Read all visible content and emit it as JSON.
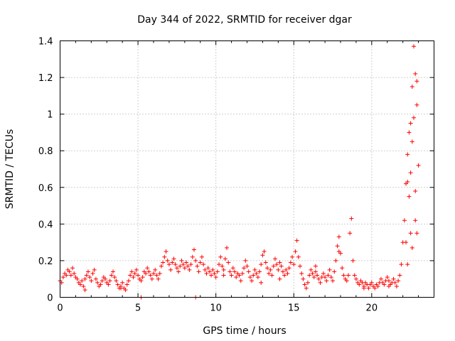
{
  "chart_data": {
    "type": "scatter",
    "title": "Day 344 of 2022, SRMTID for receiver dgar",
    "xlabel": "GPS time / hours",
    "ylabel": "SRMTID / TECUs",
    "xlim": [
      0,
      24
    ],
    "ylim": [
      0,
      1.4
    ],
    "xticks": [
      "0",
      "5",
      "10",
      "15",
      "20"
    ],
    "yticks": [
      "0",
      "0.2",
      "0.4",
      "0.6",
      "0.8",
      "1",
      "1.2",
      "1.4"
    ],
    "grid": true,
    "marker": "plus",
    "color": "#ff0000",
    "series": [
      {
        "points": [
          [
            0.0,
            0.09
          ],
          [
            0.1,
            0.08
          ],
          [
            0.2,
            0.11
          ],
          [
            0.3,
            0.13
          ],
          [
            0.4,
            0.12
          ],
          [
            0.5,
            0.15
          ],
          [
            0.6,
            0.14
          ],
          [
            0.7,
            0.12
          ],
          [
            0.8,
            0.16
          ],
          [
            0.9,
            0.13
          ],
          [
            1.0,
            0.11
          ],
          [
            1.1,
            0.1
          ],
          [
            1.2,
            0.08
          ],
          [
            1.3,
            0.07
          ],
          [
            1.4,
            0.09
          ],
          [
            1.5,
            0.06
          ],
          [
            1.6,
            0.1
          ],
          [
            1.7,
            0.12
          ],
          [
            1.8,
            0.14
          ],
          [
            1.9,
            0.11
          ],
          [
            2.0,
            0.09
          ],
          [
            2.1,
            0.13
          ],
          [
            2.2,
            0.15
          ],
          [
            2.3,
            0.1
          ],
          [
            2.4,
            0.08
          ],
          [
            2.5,
            0.06
          ],
          [
            2.6,
            0.07
          ],
          [
            2.7,
            0.09
          ],
          [
            2.8,
            0.11
          ],
          [
            2.9,
            0.1
          ],
          [
            3.0,
            0.08
          ],
          [
            3.1,
            0.07
          ],
          [
            3.2,
            0.09
          ],
          [
            3.3,
            0.12
          ],
          [
            3.4,
            0.14
          ],
          [
            3.5,
            0.11
          ],
          [
            3.6,
            0.09
          ],
          [
            3.7,
            0.07
          ],
          [
            3.8,
            0.05
          ],
          [
            3.9,
            0.06
          ],
          [
            4.0,
            0.08
          ],
          [
            4.1,
            0.05
          ],
          [
            4.2,
            0.04
          ],
          [
            4.3,
            0.07
          ],
          [
            4.4,
            0.09
          ],
          [
            4.5,
            0.12
          ],
          [
            4.6,
            0.14
          ],
          [
            4.7,
            0.11
          ],
          [
            4.8,
            0.13
          ],
          [
            4.9,
            0.15
          ],
          [
            5.0,
            0.12
          ],
          [
            5.1,
            0.1
          ],
          [
            5.2,
            0.09
          ],
          [
            5.3,
            0.11
          ],
          [
            5.4,
            0.14
          ],
          [
            5.5,
            0.13
          ],
          [
            5.6,
            0.16
          ],
          [
            5.7,
            0.14
          ],
          [
            5.8,
            0.12
          ],
          [
            5.9,
            0.1
          ],
          [
            6.0,
            0.13
          ],
          [
            6.1,
            0.15
          ],
          [
            6.2,
            0.12
          ],
          [
            6.3,
            0.1
          ],
          [
            6.4,
            0.13
          ],
          [
            6.5,
            0.17
          ],
          [
            6.6,
            0.19
          ],
          [
            6.7,
            0.22
          ],
          [
            6.8,
            0.25
          ],
          [
            6.9,
            0.2
          ],
          [
            7.0,
            0.18
          ],
          [
            7.1,
            0.15
          ],
          [
            7.2,
            0.19
          ],
          [
            7.3,
            0.21
          ],
          [
            7.4,
            0.18
          ],
          [
            7.5,
            0.16
          ],
          [
            7.6,
            0.14
          ],
          [
            7.7,
            0.17
          ],
          [
            7.8,
            0.2
          ],
          [
            7.9,
            0.18
          ],
          [
            8.0,
            0.16
          ],
          [
            8.1,
            0.19
          ],
          [
            8.2,
            0.17
          ],
          [
            8.3,
            0.15
          ],
          [
            8.4,
            0.18
          ],
          [
            8.5,
            0.22
          ],
          [
            8.6,
            0.26
          ],
          [
            8.7,
            0.2
          ],
          [
            8.8,
            0.17
          ],
          [
            8.9,
            0.14
          ],
          [
            9.0,
            0.19
          ],
          [
            9.1,
            0.22
          ],
          [
            9.2,
            0.18
          ],
          [
            9.3,
            0.15
          ],
          [
            9.4,
            0.13
          ],
          [
            9.5,
            0.16
          ],
          [
            9.6,
            0.14
          ],
          [
            9.7,
            0.12
          ],
          [
            9.8,
            0.15
          ],
          [
            9.9,
            0.13
          ],
          [
            10.0,
            0.11
          ],
          [
            10.1,
            0.14
          ],
          [
            10.2,
            0.18
          ],
          [
            10.3,
            0.22
          ],
          [
            10.4,
            0.17
          ],
          [
            10.5,
            0.15
          ],
          [
            10.6,
            0.21
          ],
          [
            10.7,
            0.27
          ],
          [
            10.8,
            0.19
          ],
          [
            10.9,
            0.14
          ],
          [
            11.0,
            0.12
          ],
          [
            11.1,
            0.16
          ],
          [
            11.2,
            0.14
          ],
          [
            11.3,
            0.11
          ],
          [
            11.4,
            0.13
          ],
          [
            11.5,
            0.12
          ],
          [
            11.6,
            0.09
          ],
          [
            11.7,
            0.13
          ],
          [
            11.8,
            0.16
          ],
          [
            11.9,
            0.2
          ],
          [
            12.0,
            0.17
          ],
          [
            12.1,
            0.14
          ],
          [
            12.2,
            0.11
          ],
          [
            12.3,
            0.09
          ],
          [
            12.4,
            0.12
          ],
          [
            12.5,
            0.15
          ],
          [
            12.6,
            0.13
          ],
          [
            12.7,
            0.11
          ],
          [
            12.8,
            0.14
          ],
          [
            12.9,
            0.18
          ],
          [
            13.0,
            0.23
          ],
          [
            13.1,
            0.25
          ],
          [
            13.2,
            0.19
          ],
          [
            13.3,
            0.16
          ],
          [
            13.4,
            0.13
          ],
          [
            13.5,
            0.15
          ],
          [
            13.6,
            0.12
          ],
          [
            13.7,
            0.17
          ],
          [
            13.8,
            0.21
          ],
          [
            13.9,
            0.18
          ],
          [
            14.0,
            0.15
          ],
          [
            14.1,
            0.19
          ],
          [
            14.2,
            0.17
          ],
          [
            14.3,
            0.14
          ],
          [
            14.4,
            0.12
          ],
          [
            14.5,
            0.15
          ],
          [
            14.6,
            0.13
          ],
          [
            14.7,
            0.16
          ],
          [
            14.8,
            0.19
          ],
          [
            14.9,
            0.22
          ],
          [
            15.0,
            0.18
          ],
          [
            15.1,
            0.25
          ],
          [
            15.2,
            0.31
          ],
          [
            15.3,
            0.22
          ],
          [
            15.4,
            0.17
          ],
          [
            15.5,
            0.13
          ],
          [
            15.6,
            0.1
          ],
          [
            15.7,
            0.07
          ],
          [
            15.8,
            0.05
          ],
          [
            15.9,
            0.08
          ],
          [
            16.0,
            0.12
          ],
          [
            16.1,
            0.15
          ],
          [
            16.2,
            0.13
          ],
          [
            16.3,
            0.11
          ],
          [
            16.4,
            0.14
          ],
          [
            16.5,
            0.12
          ],
          [
            16.6,
            0.1
          ],
          [
            16.7,
            0.08
          ],
          [
            16.8,
            0.11
          ],
          [
            16.9,
            0.13
          ],
          [
            17.0,
            0.11
          ],
          [
            17.1,
            0.09
          ],
          [
            17.2,
            0.12
          ],
          [
            17.3,
            0.15
          ],
          [
            17.4,
            0.11
          ],
          [
            17.5,
            0.09
          ],
          [
            17.6,
            0.14
          ],
          [
            17.7,
            0.2
          ],
          [
            17.8,
            0.28
          ],
          [
            17.9,
            0.33
          ],
          [
            18.0,
            0.24
          ],
          [
            18.1,
            0.16
          ],
          [
            18.2,
            0.12
          ],
          [
            18.3,
            0.1
          ],
          [
            18.4,
            0.09
          ],
          [
            18.5,
            0.12
          ],
          [
            18.6,
            0.35
          ],
          [
            18.7,
            0.43
          ],
          [
            18.8,
            0.2
          ],
          [
            18.9,
            0.12
          ],
          [
            19.0,
            0.1
          ],
          [
            19.1,
            0.08
          ],
          [
            19.2,
            0.07
          ],
          [
            19.3,
            0.09
          ],
          [
            19.4,
            0.08
          ],
          [
            19.5,
            0.06
          ],
          [
            19.6,
            0.08
          ],
          [
            19.7,
            0.07
          ],
          [
            19.8,
            0.05
          ],
          [
            19.9,
            0.07
          ],
          [
            20.0,
            0.08
          ],
          [
            20.1,
            0.06
          ],
          [
            20.2,
            0.05
          ],
          [
            20.3,
            0.07
          ],
          [
            20.4,
            0.06
          ],
          [
            20.5,
            0.08
          ],
          [
            20.6,
            0.1
          ],
          [
            20.7,
            0.08
          ],
          [
            20.8,
            0.07
          ],
          [
            20.9,
            0.09
          ],
          [
            21.0,
            0.11
          ],
          [
            21.1,
            0.09
          ],
          [
            21.2,
            0.07
          ],
          [
            21.3,
            0.08
          ],
          [
            21.4,
            0.1
          ],
          [
            21.5,
            0.08
          ],
          [
            21.6,
            0.06
          ],
          [
            21.7,
            0.09
          ],
          [
            21.8,
            0.12
          ],
          [
            21.9,
            0.18
          ],
          [
            22.0,
            0.3
          ],
          [
            22.1,
            0.42
          ],
          [
            22.2,
            0.62
          ],
          [
            22.3,
            0.78
          ],
          [
            22.4,
            0.55
          ],
          [
            22.5,
            0.95
          ],
          [
            22.6,
            1.15
          ],
          [
            22.7,
            1.37
          ],
          [
            22.8,
            1.22
          ],
          [
            22.9,
            1.05
          ],
          [
            23.0,
            0.72
          ],
          [
            1.6,
            0.04
          ],
          [
            3.9,
            0.05
          ],
          [
            5.2,
            0.0
          ],
          [
            8.7,
            0.0
          ],
          [
            10.5,
            0.12
          ],
          [
            12.9,
            0.08
          ],
          [
            14.1,
            0.1
          ],
          [
            16.4,
            0.17
          ],
          [
            17.9,
            0.25
          ],
          [
            19.5,
            0.05
          ],
          [
            21.1,
            0.06
          ],
          [
            22.2,
            0.3
          ],
          [
            22.4,
            0.9
          ],
          [
            22.6,
            0.85
          ],
          [
            22.8,
            0.58
          ],
          [
            22.9,
            0.35
          ],
          [
            22.3,
            0.63
          ],
          [
            22.5,
            0.68
          ],
          [
            22.7,
            0.98
          ],
          [
            22.9,
            1.18
          ],
          [
            22.6,
            0.27
          ],
          [
            22.3,
            0.18
          ],
          [
            22.8,
            0.42
          ],
          [
            22.5,
            0.35
          ]
        ]
      }
    ]
  }
}
